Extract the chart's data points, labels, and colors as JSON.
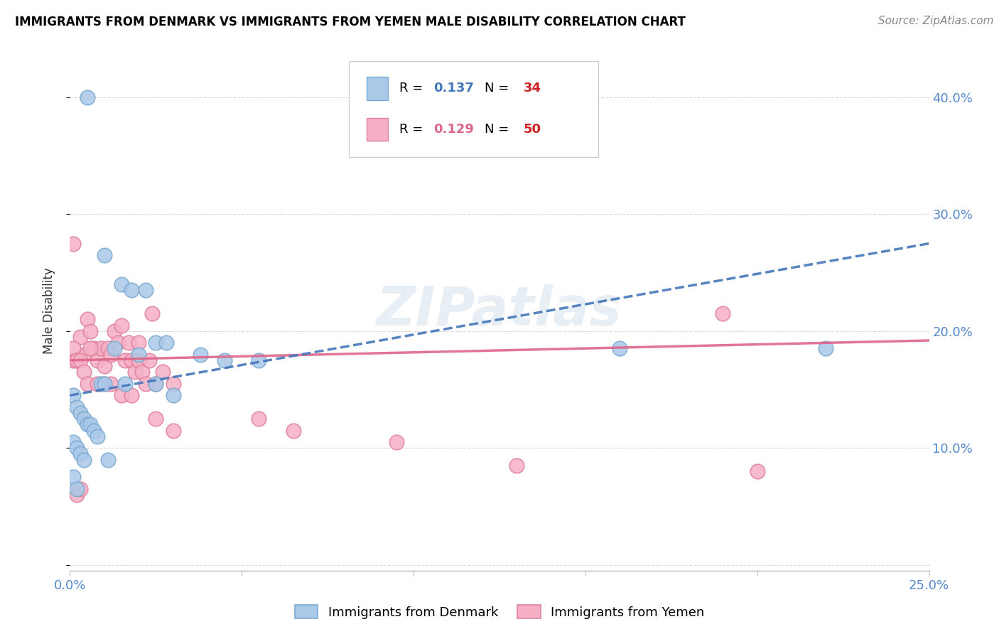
{
  "title": "IMMIGRANTS FROM DENMARK VS IMMIGRANTS FROM YEMEN MALE DISABILITY CORRELATION CHART",
  "source": "Source: ZipAtlas.com",
  "ylabel": "Male Disability",
  "xlim": [
    0.0,
    0.25
  ],
  "ylim": [
    -0.005,
    0.44
  ],
  "denmark_color": "#aac8e8",
  "yemen_color": "#f5b0c5",
  "denmark_edge": "#7aaad0",
  "yemen_edge": "#e080a0",
  "trend_denmark_color": "#4477bb",
  "trend_yemen_color": "#dd6688",
  "r_denmark": "0.137",
  "n_denmark": "34",
  "r_yemen": "0.129",
  "n_yemen": "50",
  "watermark": "ZIPatlas",
  "denmark_x": [
    0.005,
    0.01,
    0.015,
    0.018,
    0.022,
    0.025,
    0.028,
    0.001,
    0.002,
    0.003,
    0.004,
    0.005,
    0.006,
    0.007,
    0.008,
    0.009,
    0.01,
    0.011,
    0.013,
    0.016,
    0.02,
    0.025,
    0.03,
    0.038,
    0.045,
    0.055,
    0.001,
    0.002,
    0.003,
    0.004,
    0.001,
    0.002,
    0.16,
    0.22
  ],
  "denmark_y": [
    0.4,
    0.265,
    0.24,
    0.235,
    0.235,
    0.19,
    0.19,
    0.145,
    0.135,
    0.13,
    0.125,
    0.12,
    0.12,
    0.115,
    0.11,
    0.155,
    0.155,
    0.09,
    0.185,
    0.155,
    0.18,
    0.155,
    0.145,
    0.18,
    0.175,
    0.175,
    0.105,
    0.1,
    0.095,
    0.09,
    0.075,
    0.065,
    0.185,
    0.185
  ],
  "yemen_x": [
    0.001,
    0.002,
    0.003,
    0.004,
    0.005,
    0.006,
    0.007,
    0.008,
    0.009,
    0.01,
    0.011,
    0.012,
    0.013,
    0.014,
    0.015,
    0.016,
    0.017,
    0.018,
    0.019,
    0.02,
    0.021,
    0.022,
    0.023,
    0.024,
    0.025,
    0.027,
    0.03,
    0.001,
    0.002,
    0.003,
    0.004,
    0.005,
    0.006,
    0.008,
    0.01,
    0.012,
    0.015,
    0.018,
    0.02,
    0.025,
    0.03,
    0.055,
    0.065,
    0.095,
    0.13,
    0.001,
    0.002,
    0.003,
    0.19,
    0.2
  ],
  "yemen_y": [
    0.175,
    0.175,
    0.195,
    0.18,
    0.21,
    0.2,
    0.185,
    0.175,
    0.185,
    0.17,
    0.185,
    0.18,
    0.2,
    0.19,
    0.205,
    0.175,
    0.19,
    0.175,
    0.165,
    0.175,
    0.165,
    0.155,
    0.175,
    0.215,
    0.155,
    0.165,
    0.155,
    0.185,
    0.175,
    0.175,
    0.165,
    0.155,
    0.185,
    0.155,
    0.155,
    0.155,
    0.145,
    0.145,
    0.19,
    0.125,
    0.115,
    0.125,
    0.115,
    0.105,
    0.085,
    0.275,
    0.06,
    0.065,
    0.215,
    0.08
  ]
}
